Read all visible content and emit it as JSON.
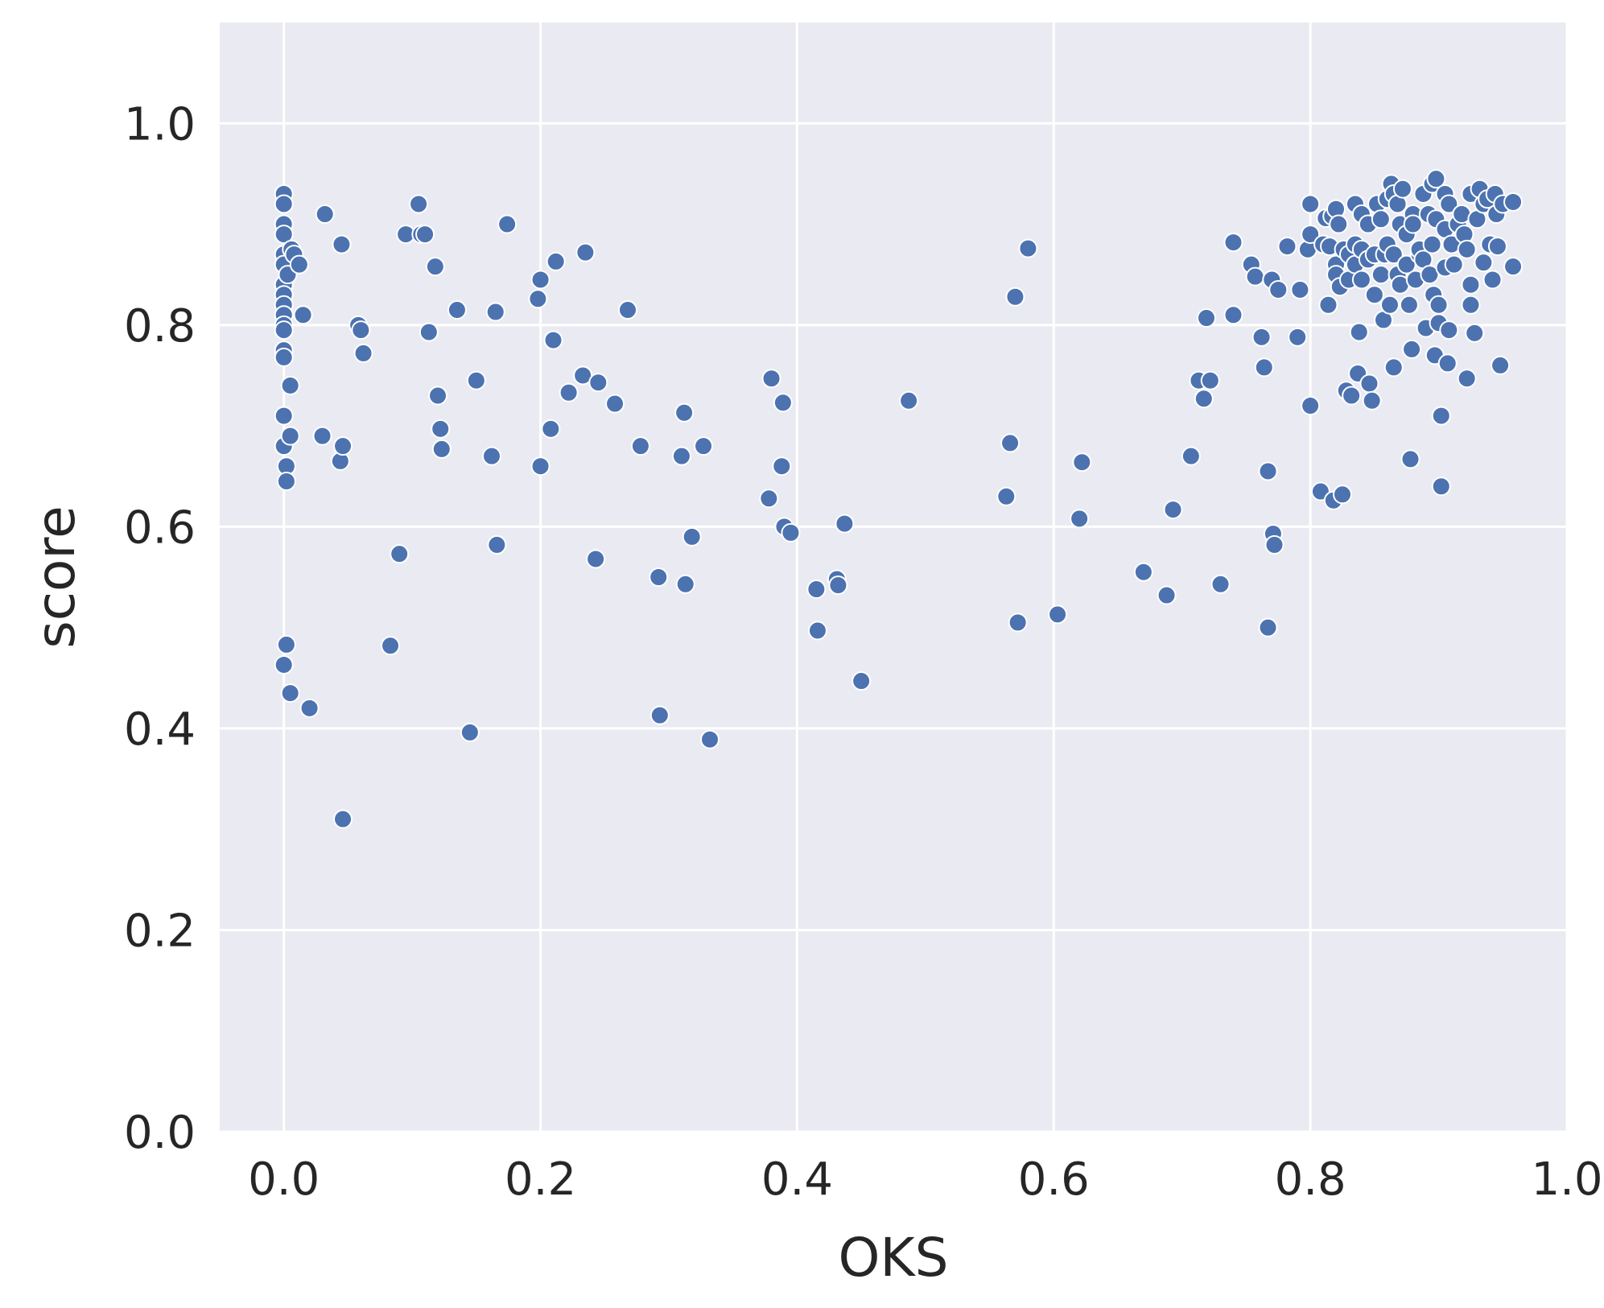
{
  "chart_data": {
    "type": "scatter",
    "xlabel": "OKS",
    "ylabel": "score",
    "xlim": [
      -0.05,
      1.0
    ],
    "ylim": [
      0.0,
      1.1
    ],
    "x_ticks": [
      "0.0",
      "0.2",
      "0.4",
      "0.6",
      "0.8",
      "1.0"
    ],
    "y_ticks": [
      "0.0",
      "0.2",
      "0.4",
      "0.6",
      "0.8",
      "1.0"
    ],
    "grid": true,
    "colors": {
      "background": "#eaeaf2",
      "point": "#4c72b0",
      "grid": "#ffffff",
      "text": "#262626"
    },
    "series": [
      {
        "points": [
          [
            0.0,
            0.93
          ],
          [
            0.0,
            0.92
          ],
          [
            0.0,
            0.9
          ],
          [
            0.0,
            0.89
          ],
          [
            0.0,
            0.87
          ],
          [
            0.0,
            0.86
          ],
          [
            0.0,
            0.84
          ],
          [
            0.0,
            0.83
          ],
          [
            0.0,
            0.82
          ],
          [
            0.0,
            0.81
          ],
          [
            0.0,
            0.8
          ],
          [
            0.0,
            0.795
          ],
          [
            0.0,
            0.775
          ],
          [
            0.0,
            0.768
          ],
          [
            0.0,
            0.71
          ],
          [
            0.0,
            0.68
          ],
          [
            0.0,
            0.463
          ],
          [
            0.002,
            0.66
          ],
          [
            0.002,
            0.645
          ],
          [
            0.002,
            0.483
          ],
          [
            0.003,
            0.85
          ],
          [
            0.005,
            0.69
          ],
          [
            0.005,
            0.435
          ],
          [
            0.005,
            0.74
          ],
          [
            0.006,
            0.875
          ],
          [
            0.008,
            0.87
          ],
          [
            0.012,
            0.86
          ],
          [
            0.015,
            0.81
          ],
          [
            0.02,
            0.42
          ],
          [
            0.03,
            0.69
          ],
          [
            0.032,
            0.91
          ],
          [
            0.044,
            0.665
          ],
          [
            0.045,
            0.88
          ],
          [
            0.046,
            0.68
          ],
          [
            0.046,
            0.31
          ],
          [
            0.058,
            0.8
          ],
          [
            0.06,
            0.795
          ],
          [
            0.062,
            0.772
          ],
          [
            0.083,
            0.482
          ],
          [
            0.09,
            0.573
          ],
          [
            0.095,
            0.89
          ],
          [
            0.105,
            0.92
          ],
          [
            0.107,
            0.89
          ],
          [
            0.11,
            0.89
          ],
          [
            0.113,
            0.793
          ],
          [
            0.118,
            0.858
          ],
          [
            0.12,
            0.73
          ],
          [
            0.122,
            0.697
          ],
          [
            0.123,
            0.677
          ],
          [
            0.135,
            0.815
          ],
          [
            0.145,
            0.396
          ],
          [
            0.15,
            0.745
          ],
          [
            0.162,
            0.67
          ],
          [
            0.165,
            0.813
          ],
          [
            0.166,
            0.582
          ],
          [
            0.174,
            0.9
          ],
          [
            0.198,
            0.826
          ],
          [
            0.2,
            0.845
          ],
          [
            0.2,
            0.66
          ],
          [
            0.208,
            0.697
          ],
          [
            0.21,
            0.785
          ],
          [
            0.212,
            0.863
          ],
          [
            0.222,
            0.733
          ],
          [
            0.233,
            0.75
          ],
          [
            0.235,
            0.872
          ],
          [
            0.243,
            0.568
          ],
          [
            0.245,
            0.743
          ],
          [
            0.258,
            0.722
          ],
          [
            0.268,
            0.815
          ],
          [
            0.278,
            0.68
          ],
          [
            0.292,
            0.55
          ],
          [
            0.293,
            0.413
          ],
          [
            0.31,
            0.67
          ],
          [
            0.312,
            0.713
          ],
          [
            0.313,
            0.543
          ],
          [
            0.318,
            0.59
          ],
          [
            0.327,
            0.68
          ],
          [
            0.332,
            0.389
          ],
          [
            0.378,
            0.628
          ],
          [
            0.38,
            0.747
          ],
          [
            0.388,
            0.66
          ],
          [
            0.389,
            0.723
          ],
          [
            0.39,
            0.6
          ],
          [
            0.395,
            0.594
          ],
          [
            0.415,
            0.538
          ],
          [
            0.416,
            0.497
          ],
          [
            0.431,
            0.548
          ],
          [
            0.432,
            0.542
          ],
          [
            0.437,
            0.603
          ],
          [
            0.45,
            0.447
          ],
          [
            0.487,
            0.725
          ],
          [
            0.563,
            0.63
          ],
          [
            0.566,
            0.683
          ],
          [
            0.57,
            0.828
          ],
          [
            0.572,
            0.505
          ],
          [
            0.58,
            0.876
          ],
          [
            0.603,
            0.513
          ],
          [
            0.62,
            0.608
          ],
          [
            0.622,
            0.664
          ],
          [
            0.67,
            0.555
          ],
          [
            0.688,
            0.532
          ],
          [
            0.693,
            0.617
          ],
          [
            0.707,
            0.67
          ],
          [
            0.713,
            0.745
          ],
          [
            0.717,
            0.727
          ],
          [
            0.719,
            0.807
          ],
          [
            0.722,
            0.745
          ],
          [
            0.73,
            0.543
          ],
          [
            0.74,
            0.882
          ],
          [
            0.74,
            0.81
          ],
          [
            0.754,
            0.86
          ],
          [
            0.757,
            0.848
          ],
          [
            0.762,
            0.788
          ],
          [
            0.764,
            0.758
          ],
          [
            0.767,
            0.655
          ],
          [
            0.767,
            0.5
          ],
          [
            0.77,
            0.845
          ],
          [
            0.771,
            0.593
          ],
          [
            0.772,
            0.582
          ],
          [
            0.775,
            0.835
          ],
          [
            0.782,
            0.878
          ],
          [
            0.79,
            0.788
          ],
          [
            0.792,
            0.835
          ],
          [
            0.798,
            0.875
          ],
          [
            0.8,
            0.92
          ],
          [
            0.8,
            0.89
          ],
          [
            0.8,
            0.72
          ],
          [
            0.808,
            0.635
          ],
          [
            0.81,
            0.88
          ],
          [
            0.812,
            0.906
          ],
          [
            0.814,
            0.82
          ],
          [
            0.815,
            0.878
          ],
          [
            0.817,
            0.908
          ],
          [
            0.818,
            0.626
          ],
          [
            0.82,
            0.915
          ],
          [
            0.82,
            0.86
          ],
          [
            0.82,
            0.85
          ],
          [
            0.822,
            0.9
          ],
          [
            0.823,
            0.838
          ],
          [
            0.825,
            0.632
          ],
          [
            0.826,
            0.875
          ],
          [
            0.828,
            0.735
          ],
          [
            0.83,
            0.87
          ],
          [
            0.83,
            0.845
          ],
          [
            0.832,
            0.73
          ],
          [
            0.835,
            0.92
          ],
          [
            0.835,
            0.88
          ],
          [
            0.835,
            0.86
          ],
          [
            0.837,
            0.752
          ],
          [
            0.838,
            0.793
          ],
          [
            0.84,
            0.91
          ],
          [
            0.84,
            0.875
          ],
          [
            0.84,
            0.845
          ],
          [
            0.845,
            0.9
          ],
          [
            0.845,
            0.865
          ],
          [
            0.846,
            0.742
          ],
          [
            0.848,
            0.725
          ],
          [
            0.85,
            0.87
          ],
          [
            0.85,
            0.83
          ],
          [
            0.852,
            0.92
          ],
          [
            0.855,
            0.905
          ],
          [
            0.855,
            0.85
          ],
          [
            0.857,
            0.805
          ],
          [
            0.858,
            0.87
          ],
          [
            0.86,
            0.925
          ],
          [
            0.86,
            0.88
          ],
          [
            0.862,
            0.82
          ],
          [
            0.863,
            0.94
          ],
          [
            0.865,
            0.93
          ],
          [
            0.865,
            0.87
          ],
          [
            0.865,
            0.758
          ],
          [
            0.868,
            0.92
          ],
          [
            0.868,
            0.85
          ],
          [
            0.87,
            0.9
          ],
          [
            0.87,
            0.84
          ],
          [
            0.872,
            0.935
          ],
          [
            0.875,
            0.89
          ],
          [
            0.875,
            0.86
          ],
          [
            0.877,
            0.82
          ],
          [
            0.878,
            0.667
          ],
          [
            0.879,
            0.776
          ],
          [
            0.88,
            0.91
          ],
          [
            0.88,
            0.9
          ],
          [
            0.882,
            0.845
          ],
          [
            0.885,
            0.87
          ],
          [
            0.885,
            0.875
          ],
          [
            0.888,
            0.93
          ],
          [
            0.888,
            0.865
          ],
          [
            0.89,
            0.797
          ],
          [
            0.892,
            0.91
          ],
          [
            0.893,
            0.85
          ],
          [
            0.895,
            0.94
          ],
          [
            0.895,
            0.88
          ],
          [
            0.896,
            0.83
          ],
          [
            0.897,
            0.77
          ],
          [
            0.898,
            0.945
          ],
          [
            0.898,
            0.905
          ],
          [
            0.9,
            0.82
          ],
          [
            0.9,
            0.802
          ],
          [
            0.902,
            0.71
          ],
          [
            0.902,
            0.64
          ],
          [
            0.905,
            0.93
          ],
          [
            0.905,
            0.895
          ],
          [
            0.905,
            0.857
          ],
          [
            0.907,
            0.762
          ],
          [
            0.908,
            0.92
          ],
          [
            0.908,
            0.795
          ],
          [
            0.91,
            0.88
          ],
          [
            0.912,
            0.86
          ],
          [
            0.915,
            0.9
          ],
          [
            0.918,
            0.91
          ],
          [
            0.92,
            0.89
          ],
          [
            0.922,
            0.875
          ],
          [
            0.922,
            0.747
          ],
          [
            0.925,
            0.93
          ],
          [
            0.925,
            0.82
          ],
          [
            0.925,
            0.84
          ],
          [
            0.928,
            0.792
          ],
          [
            0.93,
            0.905
          ],
          [
            0.932,
            0.935
          ],
          [
            0.935,
            0.92
          ],
          [
            0.935,
            0.862
          ],
          [
            0.938,
            0.925
          ],
          [
            0.94,
            0.88
          ],
          [
            0.942,
            0.845
          ],
          [
            0.944,
            0.93
          ],
          [
            0.945,
            0.91
          ],
          [
            0.946,
            0.878
          ],
          [
            0.948,
            0.76
          ],
          [
            0.95,
            0.92
          ],
          [
            0.958,
            0.922
          ],
          [
            0.958,
            0.858
          ]
        ]
      }
    ]
  }
}
